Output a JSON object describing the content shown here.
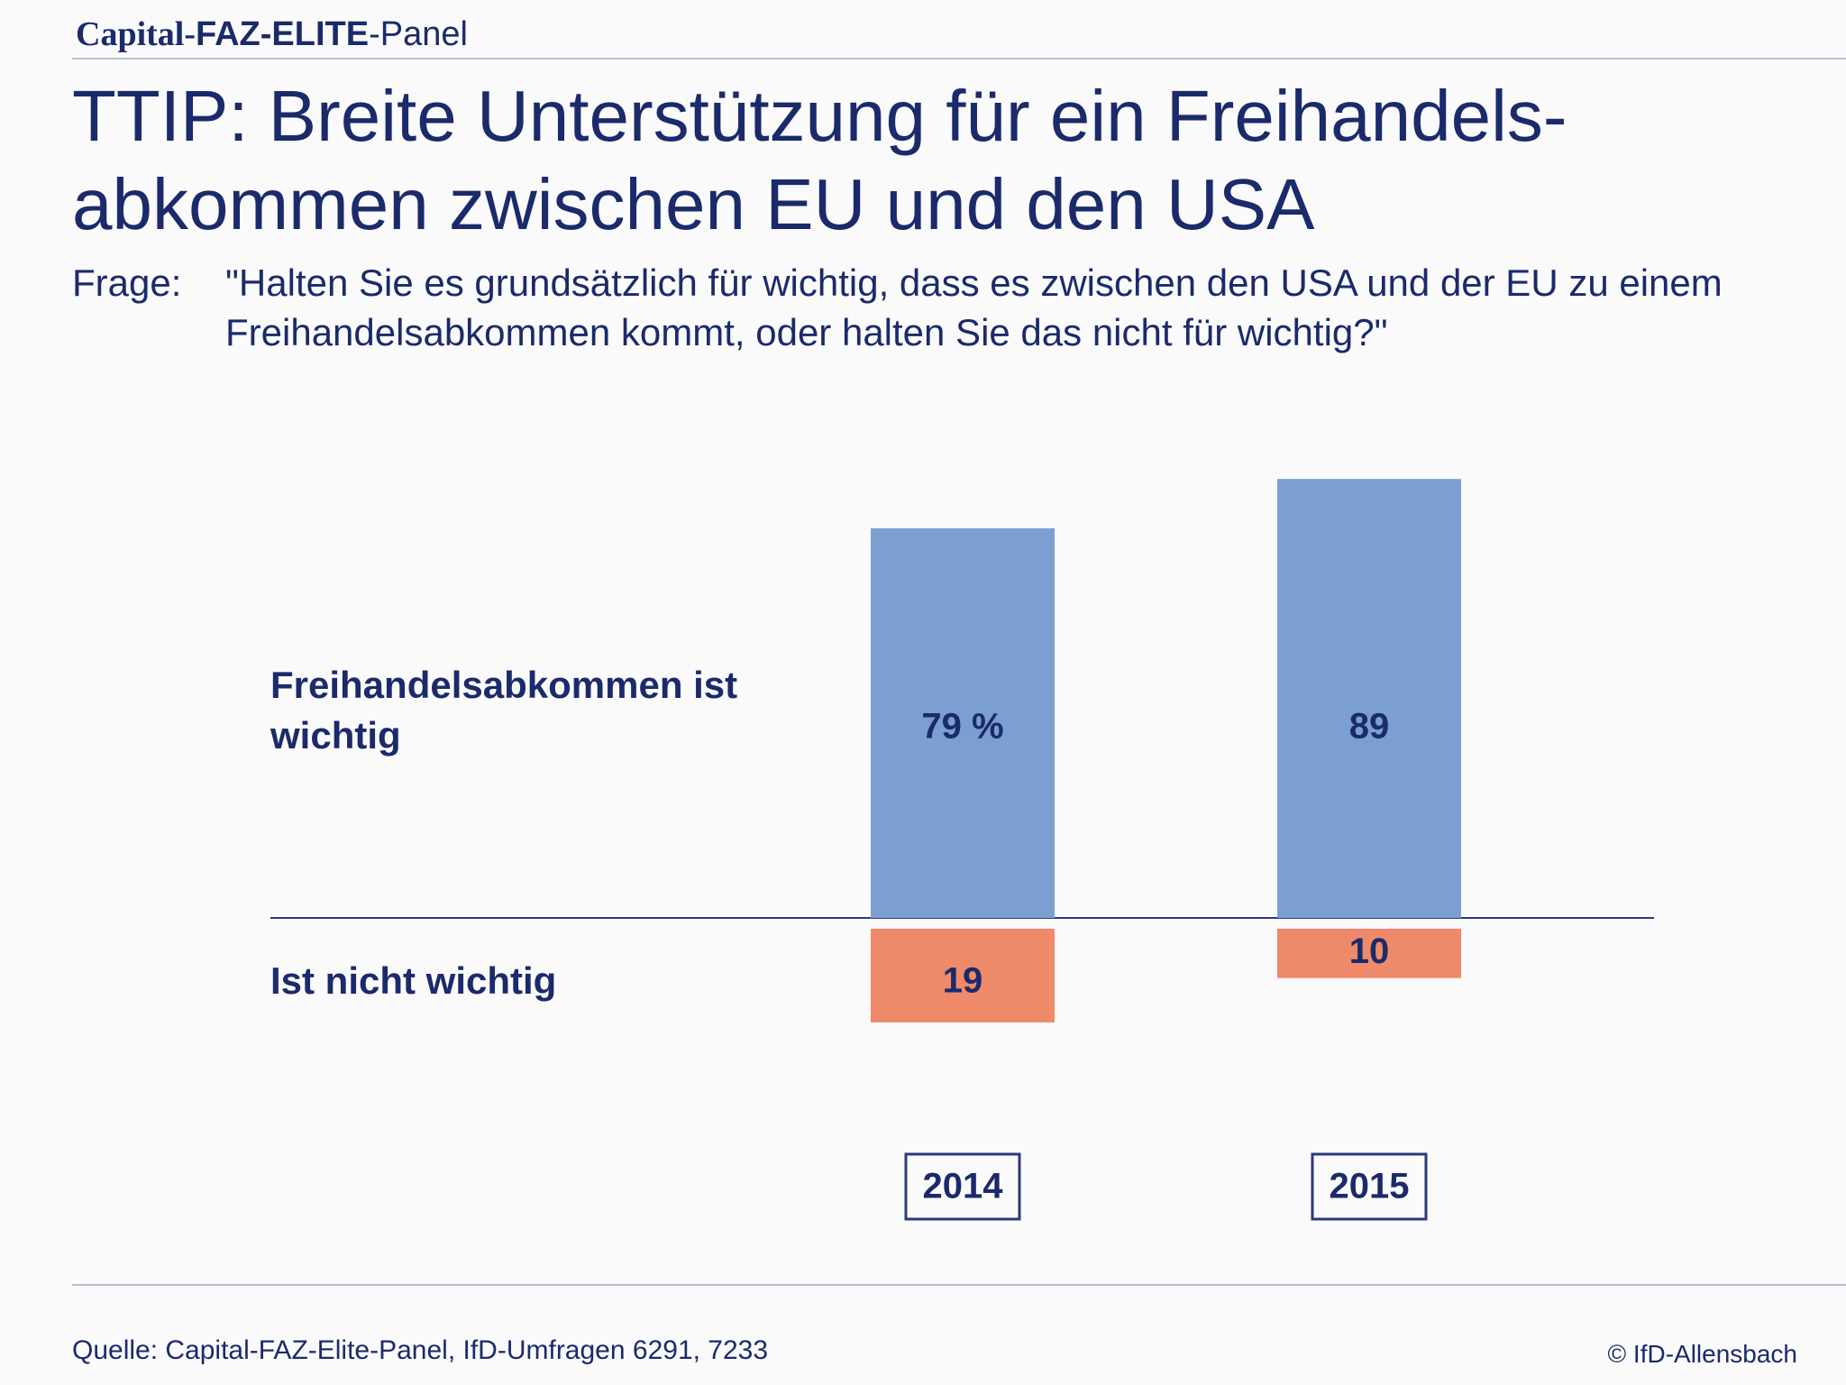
{
  "brand": {
    "part1": "Capital-",
    "part2": "FAZ-ELITE",
    "part3": "-Panel"
  },
  "title": "TTIP: Breite Unterstützung für ein Freihandels-abkommen zwischen EU und den USA",
  "question": {
    "label": "Frage:",
    "text": "\"Halten Sie es grundsätzlich für wichtig, dass es zwischen den USA und der EU zu einem Freihandelsabkommen kommt, oder halten Sie das nicht für wichtig?\""
  },
  "chart_data": {
    "type": "bar",
    "categories": [
      "2014",
      "2015"
    ],
    "series": [
      {
        "name": "Freihandelsabkommen ist wichtig",
        "values": [
          79,
          89
        ],
        "labels": [
          "79 %",
          "89"
        ],
        "color": "#7b9fd0"
      },
      {
        "name": "Ist nicht wichtig",
        "values": [
          19,
          10
        ],
        "labels": [
          "19",
          "10"
        ],
        "color": "#ee8a6a"
      }
    ]
  },
  "row_labels": {
    "positive": "Freihandelsabkommen ist wichtig",
    "negative": "Ist nicht wichtig"
  },
  "source": "Quelle: Capital-FAZ-Elite-Panel, IfD-Umfragen 6291, 7233",
  "copyright": "© IfD-Allensbach",
  "colors": {
    "text": "#1b2a6b",
    "positive": "#7b9fd0",
    "negative": "#ee8a6a",
    "rule": "#b7c1d6"
  }
}
